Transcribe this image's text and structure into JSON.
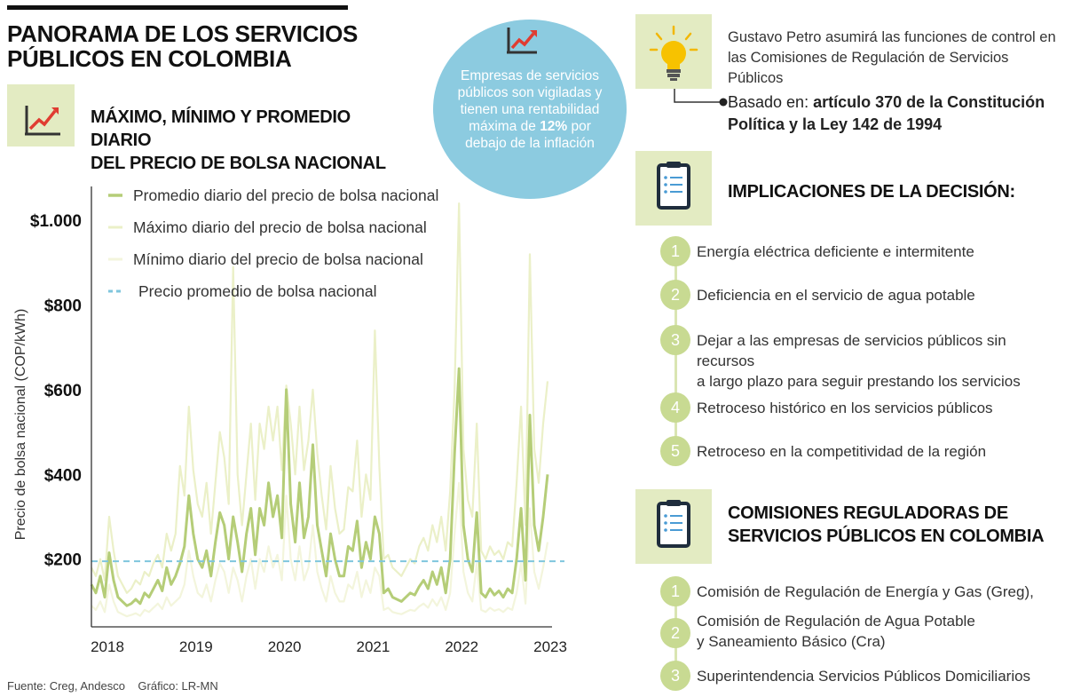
{
  "header": {
    "title_line1": "PANORAMA DE LOS SERVICIOS",
    "title_line2": "PÚBLICOS EN COLOMBIA"
  },
  "chart_section": {
    "title_line1": "MÁXIMO, MÍNIMO Y PROMEDIO DIARIO",
    "title_line2": "DEL PRECIO DE BOLSA NACIONAL"
  },
  "callout": {
    "text_lines": [
      "Empresas de servicios",
      "públicos son vigiladas y",
      "tienen una rentabilidad"
    ],
    "line4_prefix": "máxima de ",
    "line4_bold": "12%",
    "line4_suffix": " por",
    "line5": "debajo de la inflación"
  },
  "petro": {
    "line1": "Gustavo Petro asumirá las funciones de control en",
    "line2": "las Comisiones de Regulación de Servicios Públicos"
  },
  "basado": {
    "prefix": "Basado en: ",
    "bold_line1": "artículo 370 de la Constitución",
    "bold_line2": "Política y la Ley 142 de 1994"
  },
  "implicaciones": {
    "title": "IMPLICACIONES DE LA DECISIÓN:",
    "items": [
      {
        "num": "1",
        "lines": [
          "Energía eléctrica deficiente e intermitente"
        ]
      },
      {
        "num": "2",
        "lines": [
          "Deficiencia en el servicio de agua potable"
        ]
      },
      {
        "num": "3",
        "lines": [
          "Dejar a las empresas de servicios públicos sin recursos",
          "a largo plazo para seguir prestando los servicios"
        ]
      },
      {
        "num": "4",
        "lines": [
          "Retroceso histórico en los servicios públicos"
        ]
      },
      {
        "num": "5",
        "lines": [
          "Retroceso en la competitividad de la región"
        ]
      }
    ]
  },
  "comisiones": {
    "title_line1": "COMISIONES REGULADORAS DE",
    "title_line2": "SERVICIOS PÚBLICOS EN COLOMBIA",
    "items": [
      {
        "num": "1",
        "lines": [
          "Comisión de Regulación de Energía y Gas (Greg),"
        ]
      },
      {
        "num": "2",
        "lines": [
          "Comisión de Regulación de Agua Potable",
          "y Saneamiento Básico (Cra)"
        ]
      },
      {
        "num": "3",
        "lines": [
          "Superintendencia Servicios Públicos Domiciliarios"
        ]
      }
    ]
  },
  "footer": {
    "source": "Fuente: Creg, Andesco    Gráfico: LR-MN"
  },
  "colors": {
    "accent_green": "#c8da92",
    "box_green": "#e3ebc2",
    "avg_line": "#b5cd78",
    "max_line": "#ebf0c8",
    "min_line": "#f3f5dc",
    "ref_line": "#7fc6dd",
    "circle_blue": "#8ccbe0",
    "arrow_red": "#e03c31"
  },
  "icons": [
    "growth-chart-icon",
    "lightbulb-icon",
    "clipboard-icon"
  ],
  "chart_data": {
    "type": "line",
    "ylabel": "Precio de bolsa nacional (COP/kWh)",
    "x_ticks": [
      "2018",
      "2019",
      "2020",
      "2021",
      "2022",
      "2023"
    ],
    "y_ticks": [
      "$200",
      "$400",
      "$600",
      "$800",
      "$1.000"
    ],
    "y_tick_values": [
      200,
      400,
      600,
      800,
      1000
    ],
    "xlim": [
      2018.0,
      2023.2
    ],
    "ylim": [
      40,
      1080
    ],
    "legend_placement": "top-left",
    "reference_line": {
      "name": "Precio promedio de bolsa nacional",
      "value": 195
    },
    "x": [
      2018.0,
      2018.05,
      2018.1,
      2018.15,
      2018.2,
      2018.25,
      2018.3,
      2018.35,
      2018.4,
      2018.45,
      2018.5,
      2018.55,
      2018.6,
      2018.65,
      2018.7,
      2018.75,
      2018.8,
      2018.85,
      2018.9,
      2018.95,
      2019.0,
      2019.05,
      2019.1,
      2019.15,
      2019.2,
      2019.25,
      2019.3,
      2019.35,
      2019.4,
      2019.45,
      2019.5,
      2019.55,
      2019.6,
      2019.65,
      2019.7,
      2019.75,
      2019.8,
      2019.85,
      2019.9,
      2019.95,
      2020.0,
      2020.05,
      2020.1,
      2020.15,
      2020.2,
      2020.25,
      2020.3,
      2020.35,
      2020.4,
      2020.45,
      2020.5,
      2020.55,
      2020.6,
      2020.65,
      2020.7,
      2020.75,
      2020.8,
      2020.85,
      2020.9,
      2020.95,
      2021.0,
      2021.05,
      2021.1,
      2021.15,
      2021.2,
      2021.25,
      2021.3,
      2021.35,
      2021.4,
      2021.45,
      2021.5,
      2021.55,
      2021.6,
      2021.65,
      2021.7,
      2021.75,
      2021.8,
      2021.85,
      2021.9,
      2021.95,
      2022.0,
      2022.05,
      2022.1,
      2022.15,
      2022.2,
      2022.25,
      2022.3,
      2022.35,
      2022.4,
      2022.45,
      2022.5,
      2022.55,
      2022.6,
      2022.65,
      2022.7,
      2022.75,
      2022.8,
      2022.85,
      2022.9,
      2022.95,
      2023.0,
      2023.05,
      2023.1,
      2023.15
    ],
    "series": [
      {
        "name": "Promedio diario del precio de bolsa nacional",
        "values": [
          140,
          120,
          160,
          110,
          215,
          150,
          110,
          100,
          90,
          95,
          105,
          95,
          120,
          110,
          130,
          150,
          125,
          180,
          140,
          160,
          190,
          230,
          350,
          260,
          200,
          180,
          220,
          160,
          240,
          310,
          280,
          200,
          300,
          240,
          170,
          260,
          320,
          210,
          320,
          280,
          380,
          300,
          350,
          250,
          600,
          330,
          240,
          380,
          250,
          300,
          470,
          280,
          220,
          160,
          260,
          200,
          160,
          160,
          230,
          220,
          290,
          180,
          240,
          200,
          300,
          260,
          120,
          130,
          110,
          105,
          100,
          110,
          120,
          115,
          135,
          150,
          130,
          170,
          140,
          180,
          120,
          200,
          450,
          650,
          280,
          200,
          170,
          310,
          120,
          110,
          130,
          115,
          125,
          110,
          130,
          120,
          200,
          320,
          150,
          540,
          280,
          220,
          300,
          400
        ]
      },
      {
        "name": "Máximo diario del precio de bolsa nacional",
        "values": [
          180,
          160,
          200,
          150,
          300,
          220,
          160,
          140,
          120,
          130,
          150,
          140,
          170,
          160,
          190,
          210,
          180,
          260,
          220,
          260,
          420,
          350,
          560,
          410,
          330,
          300,
          380,
          260,
          380,
          500,
          440,
          330,
          890,
          400,
          280,
          400,
          520,
          340,
          520,
          460,
          560,
          480,
          560,
          410,
          610,
          520,
          400,
          560,
          410,
          480,
          600,
          450,
          350,
          270,
          420,
          320,
          260,
          270,
          370,
          360,
          480,
          300,
          400,
          340,
          740,
          420,
          200,
          210,
          180,
          170,
          160,
          180,
          200,
          190,
          230,
          250,
          220,
          280,
          240,
          300,
          220,
          360,
          600,
          1040,
          460,
          340,
          300,
          520,
          220,
          200,
          230,
          210,
          220,
          200,
          240,
          230,
          380,
          560,
          280,
          920,
          460,
          380,
          520,
          620
        ]
      },
      {
        "name": "Mínimo diario del precio de bolsa nacional",
        "values": [
          90,
          80,
          100,
          75,
          140,
          100,
          75,
          70,
          65,
          68,
          72,
          66,
          80,
          75,
          85,
          95,
          82,
          110,
          90,
          100,
          110,
          140,
          220,
          160,
          120,
          110,
          140,
          100,
          150,
          190,
          170,
          120,
          180,
          150,
          100,
          160,
          200,
          130,
          200,
          170,
          230,
          180,
          210,
          150,
          350,
          200,
          150,
          230,
          150,
          180,
          280,
          170,
          130,
          100,
          160,
          120,
          100,
          100,
          140,
          130,
          170,
          110,
          150,
          120,
          180,
          160,
          80,
          85,
          75,
          72,
          70,
          75,
          80,
          78,
          88,
          95,
          85,
          105,
          90,
          110,
          80,
          120,
          260,
          380,
          170,
          120,
          100,
          190,
          80,
          75,
          85,
          78,
          82,
          75,
          85,
          80,
          120,
          190,
          95,
          320,
          170,
          130,
          180,
          240
        ]
      }
    ]
  }
}
